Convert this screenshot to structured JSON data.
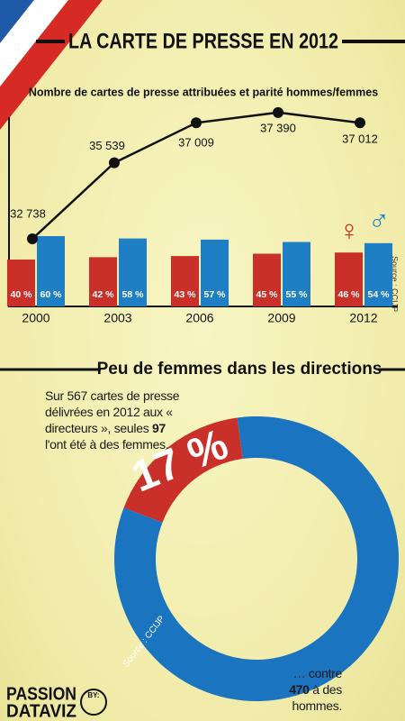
{
  "header": {
    "title": "LA CARTE DE PRESSE EN 2012"
  },
  "chart_data": [
    {
      "type": "bar",
      "title": "Nombre de cartes de presse attribuées et parité hommes/femmes",
      "categories": [
        "2000",
        "2003",
        "2006",
        "2009",
        "2012"
      ],
      "series": [
        {
          "name": "♀",
          "color": "#c9302a",
          "values": [
            40,
            42,
            43,
            45,
            46
          ],
          "value_labels": [
            "40 %",
            "42 %",
            "43 %",
            "45 %",
            "46 %"
          ]
        },
        {
          "name": "♂",
          "color": "#1f7fc4",
          "values": [
            60,
            58,
            57,
            55,
            54
          ],
          "value_labels": [
            "60 %",
            "58 %",
            "57 %",
            "55 %",
            "54 %"
          ]
        }
      ],
      "ylim": [
        0,
        100
      ],
      "line": {
        "color": "#111111",
        "values": [
          32738,
          35539,
          37009,
          37390,
          37012
        ],
        "value_labels": [
          "32 738",
          "35 539",
          "37 009",
          "37 390",
          "37 012"
        ],
        "ylim": [
          30250,
          37550
        ]
      },
      "source": "Source : CCIJP"
    },
    {
      "type": "pie",
      "title": "Peu de femmes dans les directions",
      "values": [
        17,
        83
      ],
      "value_labels": [
        "17 %",
        null
      ],
      "colors": [
        "#c9302a",
        "#1a74c0"
      ],
      "source": "Source : CCIJP",
      "note_top": {
        "before": "Sur 567 cartes de presse délivrées en 2012 aux « directeurs », seules ",
        "count": "97",
        "after": " l'ont été à des femmes."
      },
      "note_bottom": {
        "before": "… contre ",
        "count": "470",
        "after": " à des hommes."
      }
    }
  ],
  "footer": {
    "logo_top": "PASSION",
    "logo_bottom": "DATAVIZ",
    "by": "BY:"
  }
}
